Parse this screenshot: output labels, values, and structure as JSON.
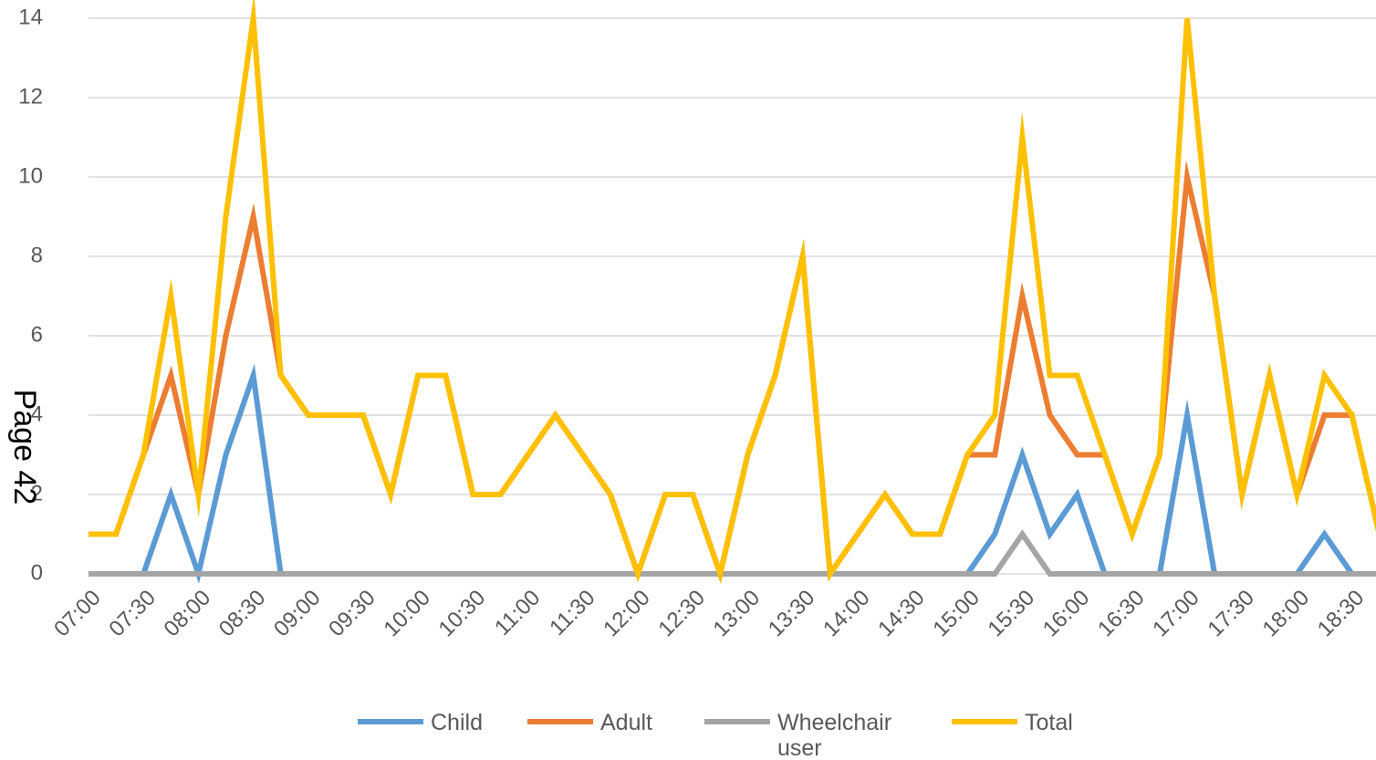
{
  "page_label": "Page 42",
  "chart_data": {
    "type": "line",
    "title": "",
    "xlabel": "",
    "ylabel": "",
    "ylim": [
      0,
      14
    ],
    "yticks": [
      0,
      2,
      4,
      6,
      8,
      10,
      12,
      14
    ],
    "grid": "horizontal",
    "legend_position": "bottom",
    "x_tick_labels": [
      "07:00",
      "07:30",
      "08:00",
      "08:30",
      "09:00",
      "09:30",
      "10:00",
      "10:30",
      "11:00",
      "11:30",
      "12:00",
      "12:30",
      "13:00",
      "13:30",
      "14:00",
      "14:30",
      "15:00",
      "15:30",
      "16:00",
      "16:30",
      "17:00",
      "17:30",
      "18:00",
      "18:30"
    ],
    "x": [
      "07:00",
      "07:15",
      "07:30",
      "07:45",
      "08:00",
      "08:15",
      "08:30",
      "08:45",
      "09:00",
      "09:15",
      "09:30",
      "09:45",
      "10:00",
      "10:15",
      "10:30",
      "10:45",
      "11:00",
      "11:15",
      "11:30",
      "11:45",
      "12:00",
      "12:15",
      "12:30",
      "12:45",
      "13:00",
      "13:15",
      "13:30",
      "13:45",
      "14:00",
      "14:15",
      "14:30",
      "14:45",
      "15:00",
      "15:15",
      "15:30",
      "15:45",
      "16:00",
      "16:15",
      "16:30",
      "16:45",
      "17:00",
      "17:15",
      "17:30",
      "17:45",
      "18:00",
      "18:15",
      "18:30",
      "18:45"
    ],
    "series": [
      {
        "name": "Child",
        "color": "#5B9BD5",
        "values": [
          0,
          0,
          0,
          2,
          0,
          3,
          5,
          0,
          0,
          0,
          0,
          0,
          0,
          0,
          0,
          0,
          0,
          0,
          0,
          0,
          0,
          0,
          0,
          0,
          0,
          0,
          0,
          0,
          0,
          0,
          0,
          0,
          0,
          1,
          3,
          1,
          2,
          0,
          0,
          0,
          4,
          0,
          0,
          0,
          0,
          1,
          0,
          0
        ]
      },
      {
        "name": "Adult",
        "color": "#ED7D31",
        "values": [
          1,
          1,
          3,
          5,
          2,
          6,
          9,
          5,
          4,
          4,
          4,
          2,
          5,
          5,
          2,
          2,
          3,
          4,
          3,
          2,
          0,
          2,
          2,
          0,
          3,
          5,
          8,
          0,
          1,
          2,
          1,
          1,
          3,
          3,
          7,
          4,
          3,
          3,
          1,
          3,
          10,
          7,
          2,
          5,
          2,
          4,
          4,
          1
        ]
      },
      {
        "name": "Wheelchair user",
        "color": "#A5A5A5",
        "values": [
          0,
          0,
          0,
          0,
          0,
          0,
          0,
          0,
          0,
          0,
          0,
          0,
          0,
          0,
          0,
          0,
          0,
          0,
          0,
          0,
          0,
          0,
          0,
          0,
          0,
          0,
          0,
          0,
          0,
          0,
          0,
          0,
          0,
          0,
          1,
          0,
          0,
          0,
          0,
          0,
          0,
          0,
          0,
          0,
          0,
          0,
          0,
          0
        ]
      },
      {
        "name": "Total",
        "color": "#FFC000",
        "values": [
          1,
          1,
          3,
          7,
          2,
          9,
          14,
          5,
          4,
          4,
          4,
          2,
          5,
          5,
          2,
          2,
          3,
          4,
          3,
          2,
          0,
          2,
          2,
          0,
          3,
          5,
          8,
          0,
          1,
          2,
          1,
          1,
          3,
          4,
          11,
          5,
          5,
          3,
          1,
          3,
          14,
          7,
          2,
          5,
          2,
          5,
          4,
          1
        ]
      }
    ],
    "legend": [
      "Child",
      "Adult",
      "Wheelchair\nuser",
      "Total"
    ]
  }
}
